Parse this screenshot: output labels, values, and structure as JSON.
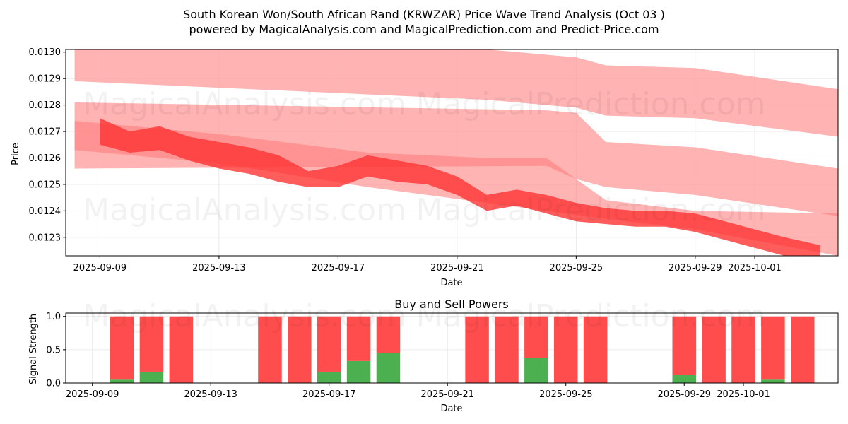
{
  "chart_data": [
    {
      "type": "area",
      "title_line1": "South Korean Won/South African Rand (KRWZAR) Price Wave Trend Analysis (Oct 03 )",
      "title_line2": "powered by MagicalAnalysis.com and MagicalPrediction.com and Predict-Price.com",
      "xlabel": "Date",
      "ylabel": "Price",
      "ylim": [
        0.01223,
        0.01301
      ],
      "x_range_days": [
        -1.15,
        24.8
      ],
      "x_ticks": [
        {
          "day": 0,
          "label": "2025-09-09"
        },
        {
          "day": 4,
          "label": "2025-09-13"
        },
        {
          "day": 8,
          "label": "2025-09-17"
        },
        {
          "day": 12,
          "label": "2025-09-21"
        },
        {
          "day": 16,
          "label": "2025-09-25"
        },
        {
          "day": 20,
          "label": "2025-09-29"
        },
        {
          "day": 22,
          "label": "2025-10-01"
        }
      ],
      "y_ticks": [
        {
          "value": 0.0123,
          "label": "0.0123"
        },
        {
          "value": 0.0124,
          "label": "0.0124"
        },
        {
          "value": 0.0125,
          "label": "0.0125"
        },
        {
          "value": 0.0126,
          "label": "0.0126"
        },
        {
          "value": 0.0127,
          "label": "0.0127"
        },
        {
          "value": 0.0128,
          "label": "0.0128"
        },
        {
          "value": 0.0129,
          "label": "0.0129"
        },
        {
          "value": 0.013,
          "label": "0.0130"
        }
      ],
      "bands": [
        {
          "name": "upper-band",
          "x": [
            -0.85,
            13,
            16,
            17,
            20,
            24.8
          ],
          "upper": [
            0.01302,
            0.01301,
            0.01298,
            0.01295,
            0.01294,
            0.01286
          ],
          "lower": [
            0.01289,
            0.01282,
            0.01279,
            0.01276,
            0.01275,
            0.01268
          ],
          "color": "#ff9999",
          "opacity": 0.75
        },
        {
          "name": "middle-band",
          "x": [
            -0.85,
            15,
            16,
            17,
            20,
            24.8
          ],
          "upper": [
            0.01281,
            0.01278,
            0.01277,
            0.01266,
            0.01264,
            0.01256
          ],
          "lower": [
            0.01256,
            0.01257,
            0.01252,
            0.01249,
            0.01246,
            0.01238
          ],
          "color": "#ff9999",
          "opacity": 0.75
        },
        {
          "name": "lower-band",
          "x": [
            -0.85,
            4,
            9,
            13,
            15,
            17,
            20,
            24.8
          ],
          "upper": [
            0.01274,
            0.01269,
            0.01262,
            0.0126,
            0.0126,
            0.01244,
            0.0124,
            0.01239
          ],
          "lower": [
            0.01263,
            0.01258,
            0.01249,
            0.01243,
            0.0124,
            0.01237,
            0.01233,
            0.01223
          ],
          "color": "#ff7777",
          "opacity": 0.55
        },
        {
          "name": "central-wave",
          "x": [
            0,
            1,
            2,
            3,
            4,
            5,
            6,
            7,
            8,
            9,
            10,
            11,
            12,
            13,
            14,
            15,
            16,
            17,
            18,
            19,
            20,
            21,
            22,
            23,
            24.2
          ],
          "upper": [
            0.01275,
            0.0127,
            0.01272,
            0.01268,
            0.01266,
            0.01264,
            0.01261,
            0.01255,
            0.01257,
            0.01261,
            0.01259,
            0.01257,
            0.01253,
            0.01246,
            0.01248,
            0.01246,
            0.01243,
            0.01241,
            0.0124,
            0.0124,
            0.01239,
            0.01236,
            0.01233,
            0.0123,
            0.01227
          ],
          "lower": [
            0.01265,
            0.01262,
            0.01263,
            0.01259,
            0.01256,
            0.01254,
            0.01251,
            0.01249,
            0.01249,
            0.01253,
            0.01251,
            0.0125,
            0.01246,
            0.0124,
            0.01242,
            0.01239,
            0.01236,
            0.01235,
            0.01234,
            0.01234,
            0.01232,
            0.01229,
            0.01226,
            0.01223,
            0.01221
          ],
          "color": "#ff3333",
          "opacity": 0.8
        }
      ]
    },
    {
      "type": "bar",
      "title": "Buy and Sell Powers",
      "xlabel": "Date",
      "ylabel": "Signal Strength",
      "ylim": [
        0,
        1.05
      ],
      "x_range_days": [
        -0.9,
        25.2
      ],
      "x_ticks": [
        {
          "day": 0,
          "label": "2025-09-09"
        },
        {
          "day": 4,
          "label": "2025-09-13"
        },
        {
          "day": 8,
          "label": "2025-09-17"
        },
        {
          "day": 12,
          "label": "2025-09-21"
        },
        {
          "day": 16,
          "label": "2025-09-25"
        },
        {
          "day": 20,
          "label": "2025-09-29"
        },
        {
          "day": 22,
          "label": "2025-10-01"
        }
      ],
      "y_ticks": [
        {
          "value": 0.0,
          "label": "0.0"
        },
        {
          "value": 0.5,
          "label": "0.5"
        },
        {
          "value": 1.0,
          "label": "1.0"
        }
      ],
      "days": [
        1,
        2,
        3,
        6,
        7,
        8,
        9,
        10,
        13,
        14,
        15,
        16,
        17,
        20,
        21,
        22,
        23,
        24
      ],
      "series": [
        {
          "name": "Buy",
          "color": "#4caf50",
          "values": [
            0.05,
            0.17,
            0,
            0,
            0,
            0.17,
            0.33,
            0.45,
            0,
            0,
            0.38,
            0,
            0,
            0.12,
            0,
            0,
            0.05,
            0
          ]
        },
        {
          "name": "Sell",
          "color": "#ff4d4d",
          "values": [
            0.95,
            0.83,
            1,
            1,
            1,
            0.83,
            0.67,
            0.55,
            1,
            1,
            0.62,
            1,
            1,
            0.88,
            1,
            1,
            0.95,
            1
          ]
        }
      ]
    }
  ],
  "watermarks": [
    "MagicalAnalysis.com",
    "MagicalPrediction.com"
  ]
}
